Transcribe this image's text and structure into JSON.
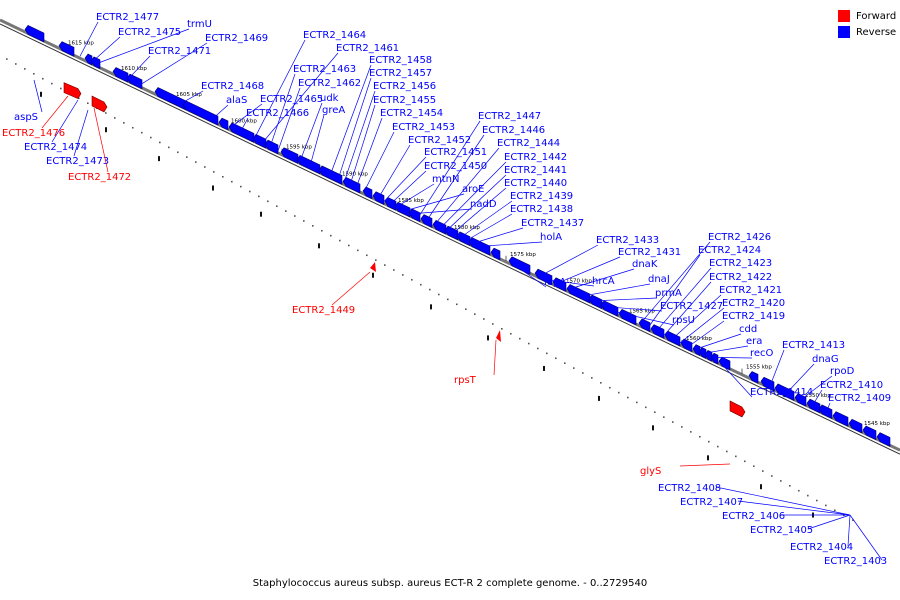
{
  "caption": "Staphylococcus aureus subsp. aureus ECT-R 2 complete genome. - 0..2729540",
  "legend": [
    {
      "label": "Forward",
      "color": "#ff0000"
    },
    {
      "label": "Reverse",
      "color": "#0000ff"
    }
  ],
  "colors": {
    "forward": "#ff0000",
    "reverse": "#0000ff",
    "backbone": "#888888"
  },
  "ticks": [
    "1615 kbp",
    "1610 kbp",
    "1605 kbp",
    "1600 kbp",
    "1595 kbp",
    "1590 kbp",
    "1585 kbp",
    "1580 kbp",
    "1575 kbp",
    "1570 kbp",
    "1565 kbp",
    "1560 kbp",
    "1555 kbp",
    "1550 kbp",
    "1545 kbp"
  ],
  "reverse_labels": [
    "ECTR2_1477",
    "ECTR2_1475",
    "trmU",
    "ECTR2_1471",
    "ECTR2_1469",
    "ECTR2_1468",
    "alaS",
    "ECTR2_1464",
    "ECTR2_1461",
    "ECTR2_1463",
    "ECTR2_1462",
    "ECTR2_1465",
    "ECTR2_1466",
    "udk",
    "greA",
    "ECTR2_1458",
    "ECTR2_1457",
    "ECTR2_1456",
    "ECTR2_1455",
    "ECTR2_1454",
    "ECTR2_1453",
    "ECTR2_1452",
    "ECTR2_1451",
    "ECTR2_1450",
    "mtnN",
    "aroE",
    "nadD",
    "ECTR2_1447",
    "ECTR2_1446",
    "ECTR2_1444",
    "ECTR2_1442",
    "ECTR2_1441",
    "ECTR2_1440",
    "ECTR2_1439",
    "ECTR2_1438",
    "ECTR2_1437",
    "holA",
    "ECTR2_1433",
    "ECTR2_1431",
    "dnaK",
    "dnaJ",
    "prmA",
    "ECTR2_1427",
    "rpsU",
    "lepA",
    "hrcA",
    "ECTR2_1426",
    "ECTR2_1424",
    "ECTR2_1423",
    "ECTR2_1422",
    "ECTR2_1421",
    "ECTR2_1420",
    "ECTR2_1419",
    "cdd",
    "era",
    "recO",
    "ECTR2_1413",
    "dnaG",
    "rpoD",
    "ECTR2_1410",
    "ECTR2_1409",
    "ECTR2_1414",
    "aspS",
    "ECTR2_1474",
    "ECTR2_1473",
    "ECTR2_1408",
    "ECTR2_1407",
    "ECTR2_1406",
    "ECTR2_1405",
    "ECTR2_1404",
    "ECTR2_1403"
  ],
  "forward_labels": [
    "ECTR2_1476",
    "ECTR2_1472",
    "ECTR2_1449",
    "rpsT",
    "glyS"
  ]
}
